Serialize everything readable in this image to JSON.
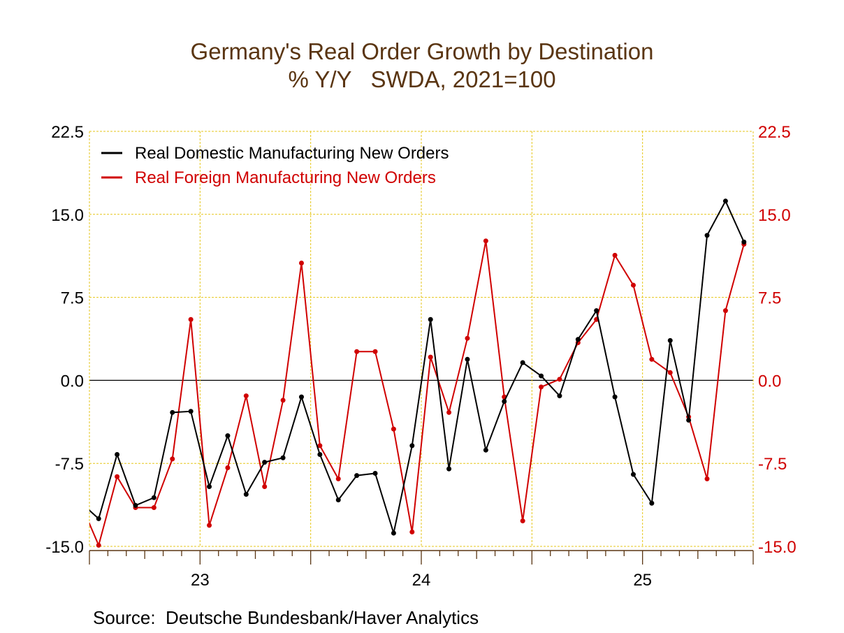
{
  "chart_data": {
    "type": "line",
    "title": "Germany's Real Order Growth by Destination",
    "subtitle": "% Y/Y   SWDA, 2021=100",
    "source": "Source:  Deutsche Bundesbank/Haver Analytics",
    "x_range": [
      "2022-07",
      "2025-06"
    ],
    "x_tick_labels": [
      "23",
      "24",
      "25"
    ],
    "ylim": [
      -15.0,
      22.5
    ],
    "y_ticks": [
      "-15.0",
      "-7.5",
      "0.0",
      "7.5",
      "15.0",
      "22.5"
    ],
    "grid": true,
    "legend_position": "top-left",
    "colors": {
      "domestic": "#000000",
      "foreign": "#d00000",
      "title": "#5a3512",
      "grid": "#e6c619",
      "axis": "#5a3512"
    },
    "x": [
      "2022-06",
      "2022-07",
      "2022-08",
      "2022-09",
      "2022-10",
      "2022-11",
      "2022-12",
      "2023-01",
      "2023-02",
      "2023-03",
      "2023-04",
      "2023-05",
      "2023-06",
      "2023-07",
      "2023-08",
      "2023-09",
      "2023-10",
      "2023-11",
      "2023-12",
      "2024-01",
      "2024-02",
      "2024-03",
      "2024-04",
      "2024-05",
      "2024-06",
      "2024-07",
      "2024-08",
      "2024-09",
      "2024-10",
      "2024-11",
      "2024-12",
      "2025-01",
      "2025-02",
      "2025-03",
      "2025-04",
      "2025-05",
      "2025-06"
    ],
    "series": [
      {
        "name": "Real Domestic Manufacturing New Orders",
        "axis": "left",
        "values": [
          -11.0,
          -12.5,
          -6.7,
          -11.3,
          -10.6,
          -2.9,
          -2.8,
          -9.6,
          -5.0,
          -10.3,
          -7.4,
          -7.0,
          -1.5,
          -6.7,
          -10.8,
          -8.6,
          -8.4,
          -13.8,
          -5.9,
          5.5,
          -8.0,
          1.9,
          -6.3,
          -1.9,
          1.6,
          0.4,
          -1.4,
          3.7,
          6.3,
          -1.5,
          -8.5,
          -11.1,
          3.6,
          -3.6,
          13.1,
          16.2,
          12.5
        ]
      },
      {
        "name": "Real Foreign Manufacturing New Orders",
        "axis": "right",
        "values": [
          -11.0,
          -14.9,
          -8.7,
          -11.5,
          -11.5,
          -7.1,
          5.5,
          -13.1,
          -7.9,
          -1.4,
          -9.6,
          -1.8,
          10.6,
          -5.9,
          -8.9,
          2.6,
          2.6,
          -4.4,
          -13.7,
          2.1,
          -2.9,
          3.8,
          12.6,
          -1.5,
          -12.7,
          -0.6,
          0.1,
          3.4,
          5.5,
          11.3,
          8.6,
          1.9,
          0.7,
          -3.3,
          -8.9,
          6.3,
          12.3
        ]
      }
    ]
  }
}
